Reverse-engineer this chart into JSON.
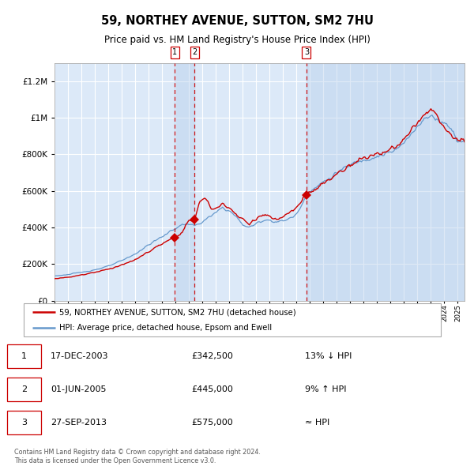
{
  "title": "59, NORTHEY AVENUE, SUTTON, SM2 7HU",
  "subtitle": "Price paid vs. HM Land Registry's House Price Index (HPI)",
  "legend_label_red": "59, NORTHEY AVENUE, SUTTON, SM2 7HU (detached house)",
  "legend_label_blue": "HPI: Average price, detached house, Epsom and Ewell",
  "footer_line1": "Contains HM Land Registry data © Crown copyright and database right 2024.",
  "footer_line2": "This data is licensed under the Open Government Licence v3.0.",
  "transactions": [
    {
      "num": 1,
      "date": "17-DEC-2003",
      "price": 342500,
      "relation": "13% ↓ HPI"
    },
    {
      "num": 2,
      "date": "01-JUN-2005",
      "price": 445000,
      "relation": "9% ↑ HPI"
    },
    {
      "num": 3,
      "date": "27-SEP-2013",
      "price": 575000,
      "relation": "≈ HPI"
    }
  ],
  "transaction_dates_decimal": [
    2003.96,
    2005.41,
    2013.74
  ],
  "t1_price": 342500,
  "t2_price": 445000,
  "t3_price": 575000,
  "plot_bg_color": "#dce9f8",
  "red_color": "#cc0000",
  "blue_color": "#6699cc",
  "grid_color": "#ffffff",
  "ylim": [
    0,
    1300000
  ],
  "yticks": [
    0,
    200000,
    400000,
    600000,
    800000,
    1000000,
    1200000
  ],
  "xlim_start": 1995.0,
  "xlim_end": 2025.5,
  "hpi_keypoints": [
    [
      1995.0,
      135000
    ],
    [
      1996.0,
      142000
    ],
    [
      1997.0,
      155000
    ],
    [
      1998.0,
      168000
    ],
    [
      1999.0,
      188000
    ],
    [
      2000.0,
      218000
    ],
    [
      2001.0,
      255000
    ],
    [
      2002.0,
      305000
    ],
    [
      2003.0,
      350000
    ],
    [
      2003.96,
      393500
    ],
    [
      2004.5,
      415000
    ],
    [
      2005.0,
      420000
    ],
    [
      2005.41,
      408000
    ],
    [
      2006.0,
      430000
    ],
    [
      2007.0,
      480000
    ],
    [
      2007.5,
      510000
    ],
    [
      2008.0,
      490000
    ],
    [
      2008.5,
      460000
    ],
    [
      2009.0,
      415000
    ],
    [
      2009.5,
      400000
    ],
    [
      2010.0,
      420000
    ],
    [
      2010.5,
      440000
    ],
    [
      2011.0,
      440000
    ],
    [
      2011.5,
      430000
    ],
    [
      2012.0,
      435000
    ],
    [
      2012.5,
      450000
    ],
    [
      2013.0,
      470000
    ],
    [
      2013.74,
      575000
    ],
    [
      2014.0,
      600000
    ],
    [
      2014.5,
      620000
    ],
    [
      2015.0,
      650000
    ],
    [
      2015.5,
      670000
    ],
    [
      2016.0,
      700000
    ],
    [
      2016.5,
      720000
    ],
    [
      2017.0,
      740000
    ],
    [
      2017.5,
      760000
    ],
    [
      2018.0,
      770000
    ],
    [
      2018.5,
      780000
    ],
    [
      2019.0,
      790000
    ],
    [
      2019.5,
      800000
    ],
    [
      2020.0,
      810000
    ],
    [
      2020.5,
      830000
    ],
    [
      2021.0,
      860000
    ],
    [
      2021.5,
      910000
    ],
    [
      2022.0,
      960000
    ],
    [
      2022.5,
      990000
    ],
    [
      2023.0,
      1010000
    ],
    [
      2023.5,
      990000
    ],
    [
      2024.0,
      970000
    ],
    [
      2024.5,
      950000
    ],
    [
      2025.0,
      870000
    ]
  ],
  "red_keypoints": [
    [
      1995.0,
      120000
    ],
    [
      1996.0,
      128000
    ],
    [
      1997.0,
      140000
    ],
    [
      1998.0,
      155000
    ],
    [
      1999.0,
      172000
    ],
    [
      2000.0,
      195000
    ],
    [
      2001.0,
      222000
    ],
    [
      2002.0,
      268000
    ],
    [
      2003.0,
      310000
    ],
    [
      2003.96,
      342500
    ],
    [
      2004.5,
      380000
    ],
    [
      2005.0,
      430000
    ],
    [
      2005.41,
      445000
    ],
    [
      2005.8,
      540000
    ],
    [
      2006.2,
      560000
    ],
    [
      2006.6,
      510000
    ],
    [
      2007.0,
      500000
    ],
    [
      2007.5,
      530000
    ],
    [
      2008.0,
      510000
    ],
    [
      2008.5,
      470000
    ],
    [
      2009.0,
      440000
    ],
    [
      2009.5,
      420000
    ],
    [
      2010.0,
      450000
    ],
    [
      2010.5,
      470000
    ],
    [
      2011.0,
      460000
    ],
    [
      2011.5,
      440000
    ],
    [
      2012.0,
      455000
    ],
    [
      2012.5,
      480000
    ],
    [
      2013.0,
      510000
    ],
    [
      2013.74,
      575000
    ],
    [
      2014.0,
      595000
    ],
    [
      2014.5,
      610000
    ],
    [
      2015.0,
      640000
    ],
    [
      2015.5,
      660000
    ],
    [
      2016.0,
      695000
    ],
    [
      2016.5,
      715000
    ],
    [
      2017.0,
      745000
    ],
    [
      2017.5,
      765000
    ],
    [
      2018.0,
      780000
    ],
    [
      2018.5,
      790000
    ],
    [
      2019.0,
      805000
    ],
    [
      2019.5,
      815000
    ],
    [
      2020.0,
      820000
    ],
    [
      2020.5,
      845000
    ],
    [
      2021.0,
      875000
    ],
    [
      2021.5,
      930000
    ],
    [
      2022.0,
      980000
    ],
    [
      2022.5,
      1010000
    ],
    [
      2023.0,
      1040000
    ],
    [
      2023.3,
      1020000
    ],
    [
      2023.7,
      980000
    ],
    [
      2024.0,
      950000
    ],
    [
      2024.5,
      900000
    ],
    [
      2025.0,
      870000
    ]
  ]
}
